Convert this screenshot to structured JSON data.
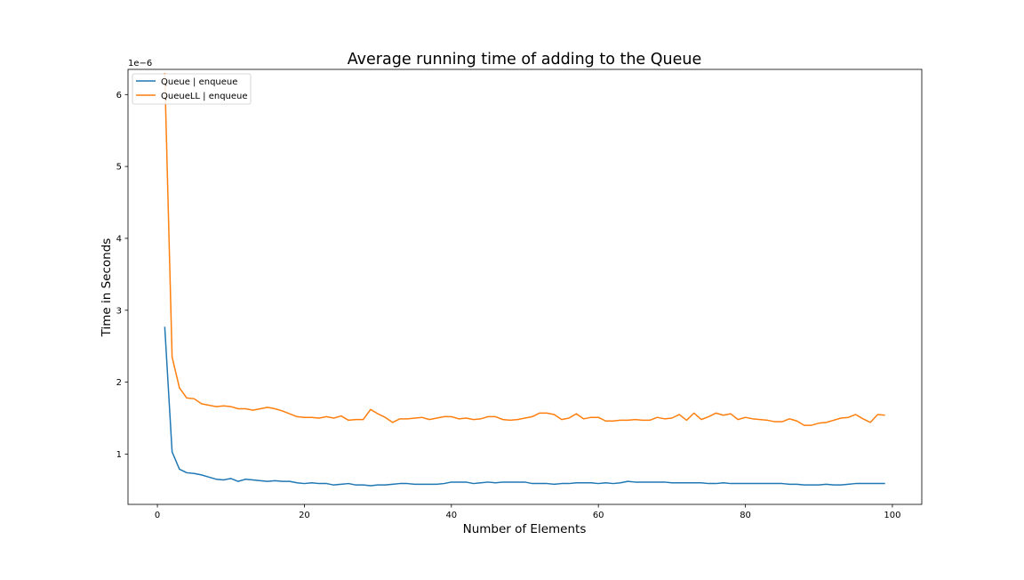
{
  "chart_data": {
    "type": "line",
    "title": "Average running time of adding to the Queue",
    "xlabel": "Number of Elements",
    "ylabel": "Time in Seconds",
    "y_scale_label": "1e−6",
    "xlim": [
      -4,
      104
    ],
    "ylim": [
      0.3,
      6.35
    ],
    "x_ticks": [
      0,
      20,
      40,
      60,
      80,
      100
    ],
    "y_ticks": [
      1,
      2,
      3,
      4,
      5,
      6
    ],
    "grid": false,
    "legend_position": "upper left",
    "x": [
      1,
      2,
      3,
      4,
      5,
      6,
      7,
      8,
      9,
      10,
      11,
      12,
      13,
      14,
      15,
      16,
      17,
      18,
      19,
      20,
      21,
      22,
      23,
      24,
      25,
      26,
      27,
      28,
      29,
      30,
      31,
      32,
      33,
      34,
      35,
      36,
      37,
      38,
      39,
      40,
      41,
      42,
      43,
      44,
      45,
      46,
      47,
      48,
      49,
      50,
      51,
      52,
      53,
      54,
      55,
      56,
      57,
      58,
      59,
      60,
      61,
      62,
      63,
      64,
      65,
      66,
      67,
      68,
      69,
      70,
      71,
      72,
      73,
      74,
      75,
      76,
      77,
      78,
      79,
      80,
      81,
      82,
      83,
      84,
      85,
      86,
      87,
      88,
      89,
      90,
      91,
      92,
      93,
      94,
      95,
      96,
      97,
      98,
      99
    ],
    "series": [
      {
        "name": "Queue | enqueue",
        "color": "#1f77b4",
        "values": [
          2.77,
          1.03,
          0.79,
          0.74,
          0.73,
          0.71,
          0.68,
          0.65,
          0.64,
          0.66,
          0.62,
          0.65,
          0.64,
          0.63,
          0.62,
          0.63,
          0.62,
          0.62,
          0.6,
          0.59,
          0.6,
          0.59,
          0.59,
          0.57,
          0.58,
          0.59,
          0.57,
          0.57,
          0.56,
          0.57,
          0.57,
          0.58,
          0.59,
          0.59,
          0.58,
          0.58,
          0.58,
          0.58,
          0.59,
          0.61,
          0.61,
          0.61,
          0.59,
          0.6,
          0.61,
          0.6,
          0.61,
          0.61,
          0.61,
          0.61,
          0.59,
          0.59,
          0.59,
          0.58,
          0.59,
          0.59,
          0.6,
          0.6,
          0.6,
          0.59,
          0.6,
          0.59,
          0.6,
          0.62,
          0.61,
          0.61,
          0.61,
          0.61,
          0.61,
          0.6,
          0.6,
          0.6,
          0.6,
          0.6,
          0.59,
          0.59,
          0.6,
          0.59,
          0.59,
          0.59,
          0.59,
          0.59,
          0.59,
          0.59,
          0.59,
          0.58,
          0.58,
          0.57,
          0.57,
          0.57,
          0.58,
          0.57,
          0.57,
          0.58,
          0.59,
          0.59,
          0.59,
          0.59,
          0.59
        ]
      },
      {
        "name": "QueueLL | enqueue",
        "color": "#ff7f0e",
        "values": [
          6.3,
          2.35,
          1.92,
          1.78,
          1.77,
          1.7,
          1.68,
          1.66,
          1.67,
          1.66,
          1.63,
          1.63,
          1.61,
          1.63,
          1.65,
          1.63,
          1.6,
          1.56,
          1.52,
          1.51,
          1.51,
          1.5,
          1.52,
          1.5,
          1.53,
          1.47,
          1.48,
          1.48,
          1.62,
          1.56,
          1.51,
          1.44,
          1.49,
          1.49,
          1.5,
          1.51,
          1.48,
          1.5,
          1.52,
          1.52,
          1.49,
          1.5,
          1.48,
          1.49,
          1.52,
          1.52,
          1.48,
          1.47,
          1.48,
          1.5,
          1.52,
          1.57,
          1.57,
          1.55,
          1.48,
          1.5,
          1.56,
          1.49,
          1.51,
          1.51,
          1.46,
          1.46,
          1.47,
          1.47,
          1.48,
          1.47,
          1.47,
          1.51,
          1.49,
          1.5,
          1.55,
          1.47,
          1.57,
          1.48,
          1.52,
          1.57,
          1.54,
          1.56,
          1.48,
          1.51,
          1.49,
          1.48,
          1.47,
          1.45,
          1.45,
          1.49,
          1.46,
          1.4,
          1.4,
          1.43,
          1.44,
          1.47,
          1.5,
          1.51,
          1.55,
          1.49,
          1.44,
          1.55,
          1.54
        ]
      }
    ]
  }
}
